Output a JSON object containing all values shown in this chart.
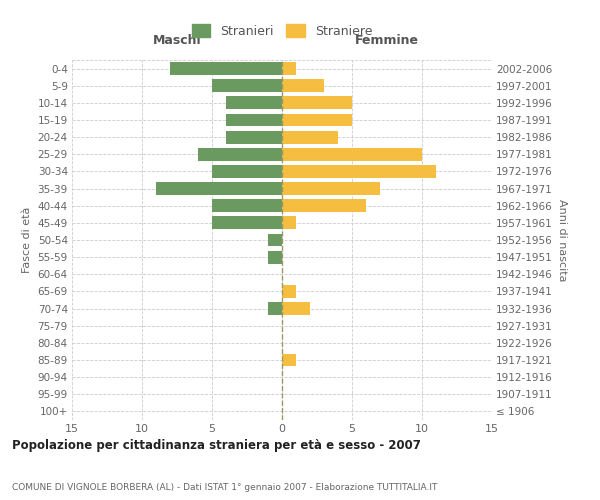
{
  "age_groups": [
    "100+",
    "95-99",
    "90-94",
    "85-89",
    "80-84",
    "75-79",
    "70-74",
    "65-69",
    "60-64",
    "55-59",
    "50-54",
    "45-49",
    "40-44",
    "35-39",
    "30-34",
    "25-29",
    "20-24",
    "15-19",
    "10-14",
    "5-9",
    "0-4"
  ],
  "birth_years": [
    "≤ 1906",
    "1907-1911",
    "1912-1916",
    "1917-1921",
    "1922-1926",
    "1927-1931",
    "1932-1936",
    "1937-1941",
    "1942-1946",
    "1947-1951",
    "1952-1956",
    "1957-1961",
    "1962-1966",
    "1967-1971",
    "1972-1976",
    "1977-1981",
    "1982-1986",
    "1987-1991",
    "1992-1996",
    "1997-2001",
    "2002-2006"
  ],
  "males": [
    0,
    0,
    0,
    0,
    0,
    0,
    1,
    0,
    0,
    1,
    1,
    5,
    5,
    9,
    5,
    6,
    4,
    4,
    4,
    5,
    8
  ],
  "females": [
    0,
    0,
    0,
    1,
    0,
    0,
    2,
    1,
    0,
    0,
    0,
    1,
    6,
    7,
    11,
    10,
    4,
    5,
    5,
    3,
    1
  ],
  "male_color": "#6a9a5f",
  "female_color": "#f5be41",
  "background_color": "#ffffff",
  "grid_color": "#cccccc",
  "title": "Popolazione per cittadinanza straniera per età e sesso - 2007",
  "subtitle": "COMUNE DI VIGNOLE BORBERA (AL) - Dati ISTAT 1° gennaio 2007 - Elaborazione TUTTITALIA.IT",
  "ylabel_left": "Fasce di età",
  "ylabel_right": "Anni di nascita",
  "header_left": "Maschi",
  "header_right": "Femmine",
  "legend_male": "Stranieri",
  "legend_female": "Straniere",
  "xlim": 15,
  "bar_height": 0.75,
  "dashed_line_color": "#999966"
}
